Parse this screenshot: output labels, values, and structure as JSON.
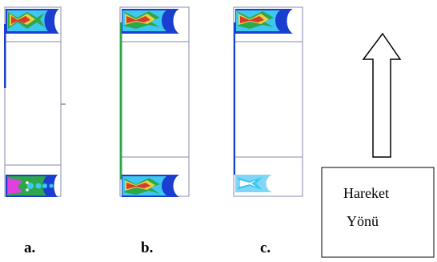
{
  "panels": [
    {
      "label": "a.",
      "variant": "a"
    },
    {
      "label": "b.",
      "variant": "b"
    },
    {
      "label": "c.",
      "variant": "c"
    }
  ],
  "direction_box": {
    "line1": "Hareket",
    "line2": "Yönü"
  },
  "colors": {
    "frame": "#8a8ab0",
    "contour_blue": "#1a3fd0",
    "contour_cyan": "#3ec8f0",
    "contour_green": "#2ea64a",
    "contour_yellow": "#e8d040",
    "contour_red": "#d83a30",
    "contour_magenta": "#e040e0"
  },
  "icons": {
    "arrow": "up-arrow-outline-icon"
  }
}
